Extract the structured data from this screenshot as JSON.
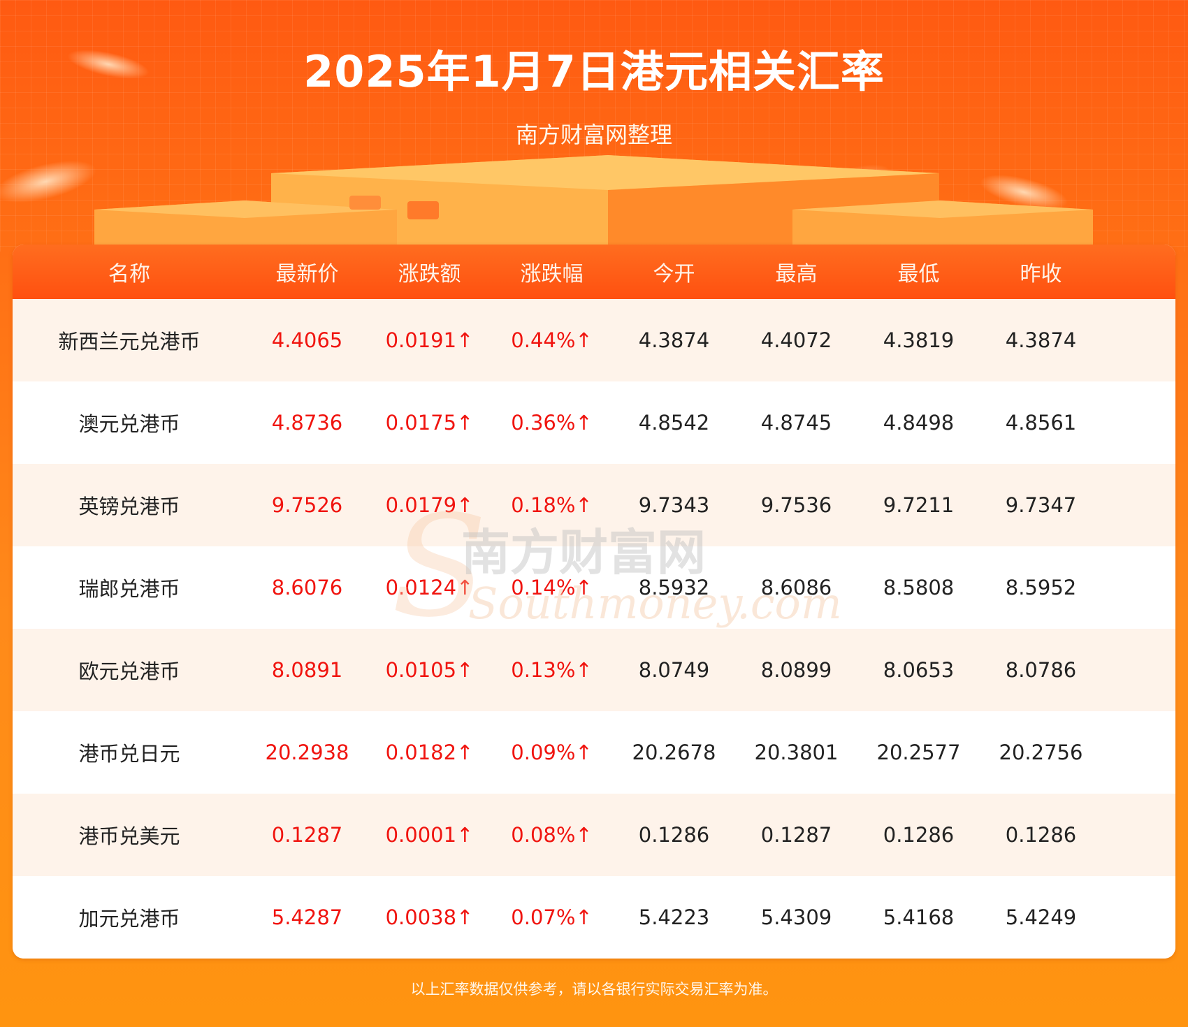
{
  "title": "2025年1月7日港元相关汇率",
  "subtitle": "南方财富网整理",
  "columns": [
    "名称",
    "最新价",
    "涨跌额",
    "涨跌幅",
    "今开",
    "最高",
    "最低",
    "昨收"
  ],
  "rows": [
    {
      "name": "新西兰元兑港币",
      "latest": "4.4065",
      "change": "0.0191↑",
      "pct": "0.44%↑",
      "open": "4.3874",
      "high": "4.4072",
      "low": "4.3819",
      "prev": "4.3874"
    },
    {
      "name": "澳元兑港币",
      "latest": "4.8736",
      "change": "0.0175↑",
      "pct": "0.36%↑",
      "open": "4.8542",
      "high": "4.8745",
      "low": "4.8498",
      "prev": "4.8561"
    },
    {
      "name": "英镑兑港币",
      "latest": "9.7526",
      "change": "0.0179↑",
      "pct": "0.18%↑",
      "open": "9.7343",
      "high": "9.7536",
      "low": "9.7211",
      "prev": "9.7347"
    },
    {
      "name": "瑞郎兑港币",
      "latest": "8.6076",
      "change": "0.0124↑",
      "pct": "0.14%↑",
      "open": "8.5932",
      "high": "8.6086",
      "low": "8.5808",
      "prev": "8.5952"
    },
    {
      "name": "欧元兑港币",
      "latest": "8.0891",
      "change": "0.0105↑",
      "pct": "0.13%↑",
      "open": "8.0749",
      "high": "8.0899",
      "low": "8.0653",
      "prev": "8.0786"
    },
    {
      "name": "港币兑日元",
      "latest": "20.2938",
      "change": "0.0182↑",
      "pct": "0.09%↑",
      "open": "20.2678",
      "high": "20.3801",
      "low": "20.2577",
      "prev": "20.2756"
    },
    {
      "name": "港币兑美元",
      "latest": "0.1287",
      "change": "0.0001↑",
      "pct": "0.08%↑",
      "open": "0.1286",
      "high": "0.1287",
      "low": "0.1286",
      "prev": "0.1286"
    },
    {
      "name": "加元兑港币",
      "latest": "5.4287",
      "change": "0.0038↑",
      "pct": "0.07%↑",
      "open": "5.4223",
      "high": "5.4309",
      "low": "5.4168",
      "prev": "5.4249"
    }
  ],
  "watermark": {
    "cn": "南方财富网",
    "en": "Southmoney.com"
  },
  "footer_note": "以上汇率数据仅供参考，请以各银行实际交易汇率为准。",
  "colors": {
    "up": "#f0140f",
    "header_bg": "#ff5a12",
    "row_alt": "#fef3ea"
  }
}
